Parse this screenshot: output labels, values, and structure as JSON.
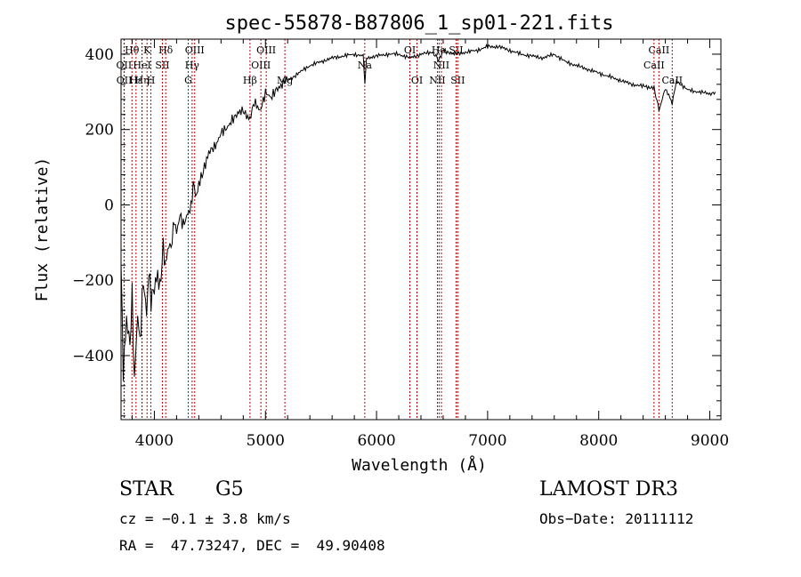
{
  "chart_data": {
    "type": "line",
    "title": "spec-55878-B87806_1_sp01-221.fits",
    "xlabel": "Wavelength (Å)",
    "ylabel": "Flux (relative)",
    "xlim": [
      3700,
      9100
    ],
    "ylim": [
      -570,
      440
    ],
    "xticks": [
      4000,
      5000,
      6000,
      7000,
      8000,
      9000
    ],
    "yticks": [
      -400,
      -200,
      0,
      200,
      400
    ],
    "series": [
      {
        "name": "flux",
        "x": [
          3700,
          3720,
          3750,
          3780,
          3800,
          3820,
          3850,
          3870,
          3900,
          3930,
          3950,
          3970,
          4000,
          4030,
          4050,
          4080,
          4100,
          4130,
          4150,
          4180,
          4200,
          4230,
          4260,
          4300,
          4330,
          4350,
          4380,
          4400,
          4450,
          4500,
          4550,
          4600,
          4650,
          4700,
          4750,
          4800,
          4860,
          4900,
          4950,
          5000,
          5050,
          5100,
          5150,
          5200,
          5300,
          5400,
          5500,
          5600,
          5700,
          5800,
          5880,
          5895,
          5910,
          6000,
          6100,
          6200,
          6300,
          6400,
          6500,
          6563,
          6600,
          6700,
          6800,
          6900,
          7000,
          7100,
          7200,
          7300,
          7400,
          7500,
          7600,
          7700,
          7800,
          7900,
          8000,
          8100,
          8200,
          8300,
          8400,
          8498,
          8542,
          8600,
          8662,
          8700,
          8800,
          8900,
          9000,
          9050
        ],
        "values": [
          -150,
          -430,
          -300,
          -380,
          -250,
          -470,
          -280,
          -360,
          -200,
          -300,
          -180,
          -250,
          -210,
          -180,
          -230,
          -120,
          -160,
          -100,
          -110,
          -40,
          -80,
          -30,
          -50,
          -20,
          -10,
          50,
          20,
          60,
          100,
          140,
          160,
          190,
          200,
          230,
          240,
          250,
          230,
          270,
          250,
          300,
          280,
          310,
          320,
          330,
          350,
          370,
          380,
          390,
          395,
          400,
          395,
          320,
          390,
          395,
          400,
          400,
          390,
          400,
          405,
          385,
          410,
          400,
          405,
          410,
          420,
          420,
          410,
          400,
          395,
          390,
          400,
          380,
          370,
          360,
          350,
          340,
          330,
          320,
          315,
          310,
          250,
          310,
          270,
          330,
          305,
          300,
          295,
          300
        ]
      }
    ],
    "spectral_lines": [
      {
        "label": "Hθ",
        "wavelength": 3798,
        "row": 1
      },
      {
        "label": "OII",
        "wavelength": 3727,
        "row": 2
      },
      {
        "label": "OII",
        "wavelength": 3729,
        "row": 3
      },
      {
        "label": "Hε",
        "wavelength": 3835,
        "row": 3
      },
      {
        "label": "Hη",
        "wavelength": 3889,
        "row": 3
      },
      {
        "label": "K",
        "wavelength": 3934,
        "row": 1
      },
      {
        "label": "HeI",
        "wavelength": 3889,
        "row": 2
      },
      {
        "label": "SII",
        "wavelength": 4072,
        "row": 2
      },
      {
        "label": "H",
        "wavelength": 3969,
        "row": 3
      },
      {
        "label": "Hδ",
        "wavelength": 4102,
        "row": 1
      },
      {
        "label": "OIII",
        "wavelength": 4363,
        "row": 1
      },
      {
        "label": "Hγ",
        "wavelength": 4340,
        "row": 2
      },
      {
        "label": "G",
        "wavelength": 4305,
        "row": 3
      },
      {
        "label": "OIII",
        "wavelength": 5007,
        "row": 1
      },
      {
        "label": "OIII",
        "wavelength": 4959,
        "row": 2
      },
      {
        "label": "Hβ",
        "wavelength": 4861,
        "row": 3
      },
      {
        "label": "Mg",
        "wavelength": 5175,
        "row": 3
      },
      {
        "label": "Na",
        "wavelength": 5894,
        "row": 2
      },
      {
        "label": "OI",
        "wavelength": 6300,
        "row": 1
      },
      {
        "label": "OI",
        "wavelength": 6364,
        "row": 3
      },
      {
        "label": "Hα",
        "wavelength": 6563,
        "row": 1
      },
      {
        "label": "SII",
        "wavelength": 6716,
        "row": 1
      },
      {
        "label": "NII",
        "wavelength": 6584,
        "row": 2
      },
      {
        "label": "NII",
        "wavelength": 6548,
        "row": 3
      },
      {
        "label": "SII",
        "wavelength": 6731,
        "row": 3
      },
      {
        "label": "CaII",
        "wavelength": 8542,
        "row": 1
      },
      {
        "label": "CaII",
        "wavelength": 8498,
        "row": 2
      },
      {
        "label": "CaII",
        "wavelength": 8662,
        "row": 3
      }
    ]
  },
  "info": {
    "class": "STAR",
    "subclass": "G5",
    "survey": "LAMOST DR3",
    "cz": "cz = −0.1 ± 3.8 km/s",
    "obs_date": "Obs−Date: 20111112",
    "coords": "RA =  47.73247, DEC =  49.90408"
  },
  "colors": {
    "line_marker": "#c00000",
    "spectrum": "#000000"
  }
}
